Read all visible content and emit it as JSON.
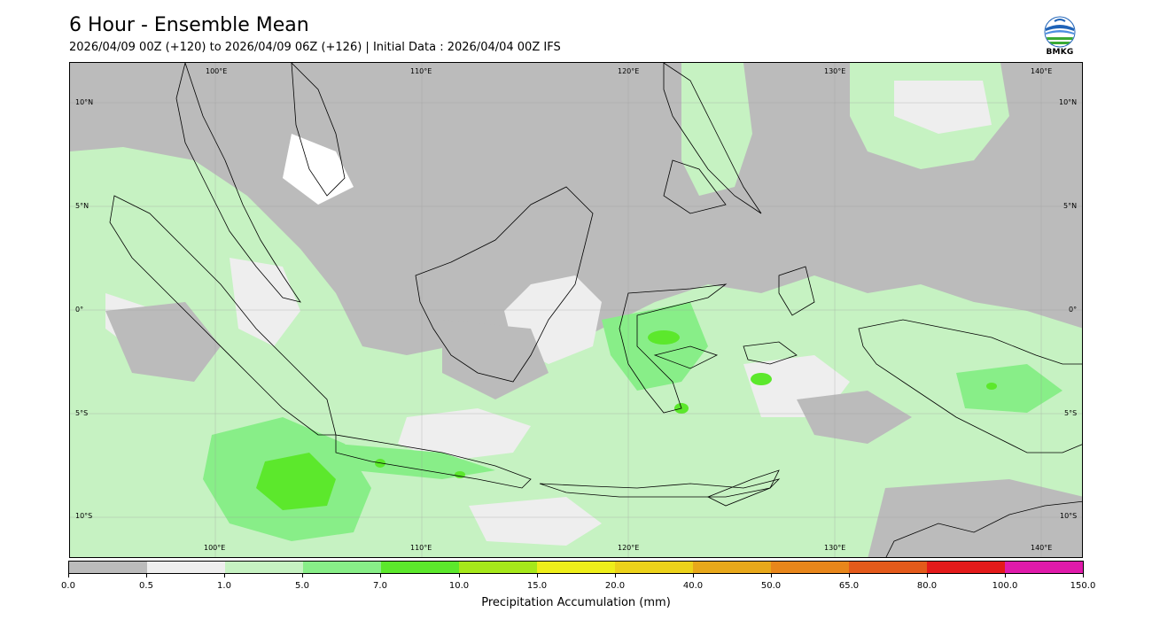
{
  "header": {
    "title": "6 Hour - Ensemble Mean",
    "subtitle": "2026/04/09 00Z (+120) to 2026/04/09 06Z (+126) | Initial Data : 2026/04/04 00Z IFS"
  },
  "logo": {
    "text": "BMKG",
    "icon": "bmkg-logo-icon"
  },
  "map": {
    "lon_labels": [
      "100°E",
      "110°E",
      "120°E",
      "130°E",
      "140°E"
    ],
    "lat_labels": [
      "10°N",
      "5°N",
      "0°",
      "5°S",
      "10°S"
    ],
    "colors": {
      "ocean_dry": "#bbbbbb",
      "land_outline": "#000000",
      "gridline": "#9a9a9a"
    }
  },
  "colorbar": {
    "label": "Precipitation Accumulation (mm)",
    "ticks": [
      "0.0",
      "0.5",
      "1.0",
      "5.0",
      "7.0",
      "10.0",
      "15.0",
      "20.0",
      "40.0",
      "50.0",
      "65.0",
      "80.0",
      "100.0",
      "150.0"
    ],
    "colors": [
      "#bbbbbb",
      "#eeeeee",
      "#c6f2c2",
      "#88ee88",
      "#5ce82c",
      "#a6e81a",
      "#eeee1a",
      "#ecd21a",
      "#e8a81a",
      "#e8861a",
      "#e45a1a",
      "#e41a1a",
      "#e01aaa"
    ]
  }
}
